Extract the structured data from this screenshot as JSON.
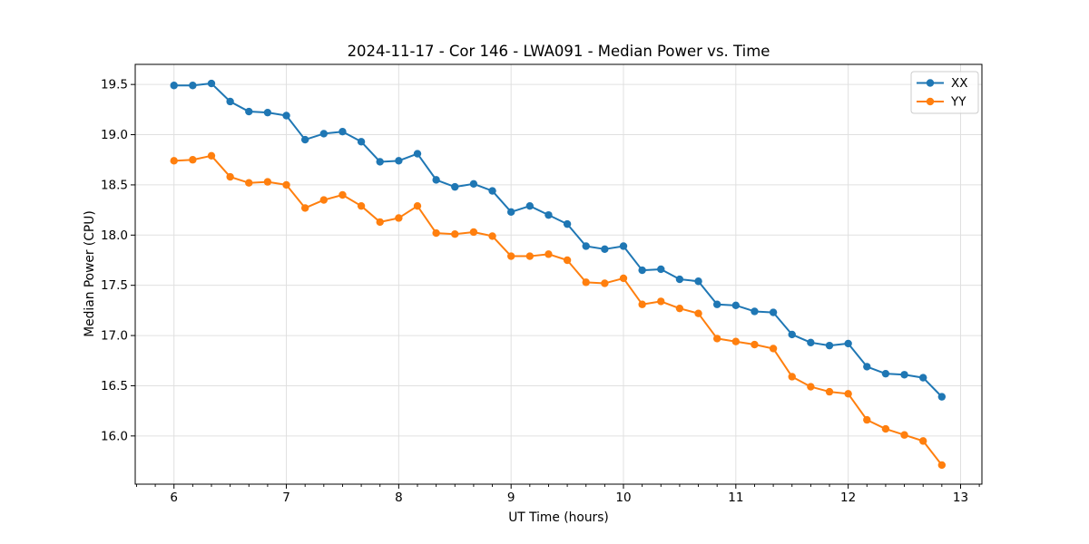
{
  "chart_data": {
    "type": "line",
    "title": "2024-11-17 - Cor 146 - LWA091 - Median Power vs. Time",
    "xlabel": "UT Time (hours)",
    "ylabel": "Median Power (CPU)",
    "xlim": [
      5.655,
      13.19
    ],
    "ylim": [
      15.52,
      19.7
    ],
    "xticks": [
      6,
      7,
      8,
      9,
      10,
      11,
      12,
      13
    ],
    "xtick_labels": [
      "6",
      "7",
      "8",
      "9",
      "10",
      "11",
      "12",
      "13"
    ],
    "yticks": [
      16.0,
      16.5,
      17.0,
      17.5,
      18.0,
      18.5,
      19.0,
      19.5
    ],
    "ytick_labels": [
      "16.0",
      "16.5",
      "17.0",
      "17.5",
      "18.0",
      "18.5",
      "19.0",
      "19.5"
    ],
    "x_minor_tick_step": 0.1666667,
    "grid": true,
    "grid_color": "#e0e0e0",
    "spine_color": "#000000",
    "text_color": "#000000",
    "background": "#ffffff",
    "legend": {
      "position": "upper right",
      "items": [
        "XX",
        "YY"
      ]
    },
    "x": [
      6.0,
      6.1667,
      6.3333,
      6.5,
      6.6667,
      6.8333,
      7.0,
      7.1667,
      7.3333,
      7.5,
      7.6667,
      7.8333,
      8.0,
      8.1667,
      8.3333,
      8.5,
      8.6667,
      8.8333,
      9.0,
      9.1667,
      9.3333,
      9.5,
      9.6667,
      9.8333,
      10.0,
      10.1667,
      10.3333,
      10.5,
      10.6667,
      10.8333,
      11.0,
      11.1667,
      11.3333,
      11.5,
      11.6667,
      11.8333,
      12.0,
      12.1667,
      12.3333,
      12.5,
      12.6667,
      12.8333
    ],
    "series": [
      {
        "name": "XX",
        "color": "#1f77b4",
        "marker": "circle",
        "values": [
          19.49,
          19.49,
          19.51,
          19.33,
          19.23,
          19.22,
          19.19,
          18.95,
          19.01,
          19.03,
          18.93,
          18.73,
          18.74,
          18.81,
          18.55,
          18.48,
          18.51,
          18.44,
          18.23,
          18.29,
          18.2,
          18.11,
          17.89,
          17.86,
          17.89,
          17.65,
          17.66,
          17.56,
          17.54,
          17.31,
          17.3,
          17.24,
          17.23,
          17.01,
          16.93,
          16.9,
          16.92,
          16.69,
          16.62,
          16.61,
          16.58,
          16.39
        ]
      },
      {
        "name": "YY",
        "color": "#ff7f0e",
        "marker": "circle",
        "values": [
          18.74,
          18.75,
          18.79,
          18.58,
          18.52,
          18.53,
          18.5,
          18.27,
          18.35,
          18.4,
          18.29,
          18.13,
          18.17,
          18.29,
          18.02,
          18.01,
          18.03,
          17.99,
          17.79,
          17.79,
          17.81,
          17.75,
          17.53,
          17.52,
          17.57,
          17.31,
          17.34,
          17.27,
          17.22,
          16.97,
          16.94,
          16.91,
          16.87,
          16.59,
          16.49,
          16.44,
          16.42,
          16.16,
          16.07,
          16.01,
          15.95,
          15.71
        ]
      }
    ]
  }
}
